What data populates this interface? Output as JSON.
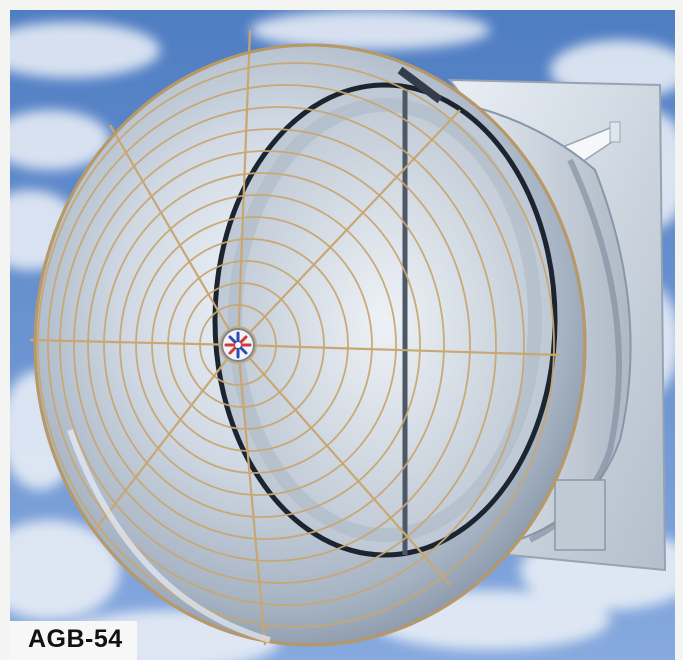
{
  "product": {
    "model_label": "AGB-54"
  },
  "scene": {
    "subject_icon": "cone-fan-icon",
    "colors": {
      "sky": "#5c86c4",
      "cloud": "#eef2f8",
      "metal_light": "#dfe6ee",
      "metal_dark": "#8f9cad",
      "guard_wire": "#c8a772",
      "hub_blue": "#2a4fb0",
      "hub_red": "#d23a3a"
    }
  }
}
